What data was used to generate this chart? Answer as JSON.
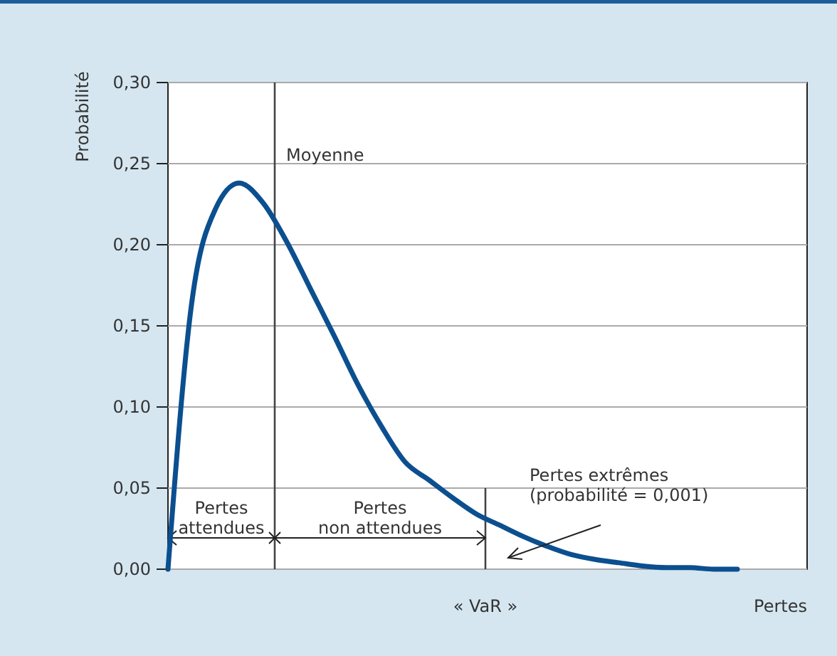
{
  "chart_data": {
    "type": "line",
    "ylabel": "Probabilité",
    "xlabel": "Pertes",
    "categories": [
      null,
      null,
      null,
      null,
      null,
      null,
      null,
      null,
      null,
      null,
      null,
      null,
      null,
      null,
      null,
      null,
      null,
      null,
      null,
      null,
      null,
      null,
      null,
      null,
      null
    ],
    "series": [
      {
        "color": "#0b4f8f",
        "values": [
          0,
          0.164,
          0.222,
          0.238,
          0.226,
          0.202,
          0.173,
          0.144,
          0.114,
          0.088,
          0.066,
          0.055,
          0.044,
          0.034,
          0.027,
          0.02,
          0.014,
          0.009,
          0.006,
          0.004,
          0.002,
          0.001,
          0.001,
          0,
          0
        ]
      }
    ],
    "ylim": [
      0,
      0.3
    ],
    "yticks": [
      {
        "value": 0,
        "label": "0,00"
      },
      {
        "value": 0.05,
        "label": "0,05"
      },
      {
        "value": 0.1,
        "label": "0,10"
      },
      {
        "value": 0.15,
        "label": "0,15"
      },
      {
        "value": 0.2,
        "label": "0,20"
      },
      {
        "value": 0.25,
        "label": "0,25"
      },
      {
        "value": 0.3,
        "label": "0,30"
      }
    ],
    "grid": "y",
    "marker": "none",
    "line_style": "solid",
    "annotations": [
      "Moyenne",
      "Pertes\nattendues",
      "Pertes\nnon attendues",
      "Pertes extrêmes\n(probabilité = 0,001)",
      "« VaR »"
    ]
  }
}
